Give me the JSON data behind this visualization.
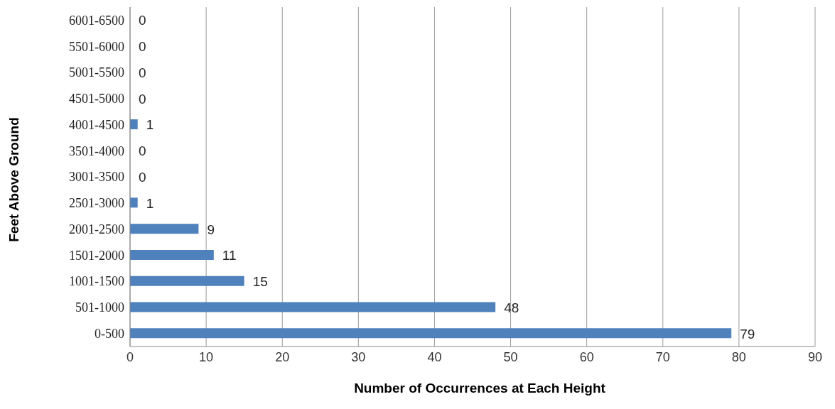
{
  "chart_data": {
    "type": "bar",
    "orientation": "horizontal",
    "xlabel": "Number of Occurrences at Each Height",
    "ylabel": "Feet Above Ground",
    "categories": [
      "6001-6500",
      "5501-6000",
      "5001-5500",
      "4501-5000",
      "4001-4500",
      "3501-4000",
      "3001-3500",
      "2501-3000",
      "2001-2500",
      "1501-2000",
      "1001-1500",
      "501-1000",
      "0-500"
    ],
    "values": [
      0,
      0,
      0,
      0,
      1,
      0,
      0,
      1,
      9,
      11,
      15,
      48,
      79
    ],
    "color": "#4f81bd",
    "data_labels": true,
    "xlim": [
      0,
      90
    ],
    "xticks": [
      0,
      10,
      20,
      30,
      40,
      50,
      60,
      70,
      80,
      90
    ],
    "grid": "x",
    "legend": false
  }
}
